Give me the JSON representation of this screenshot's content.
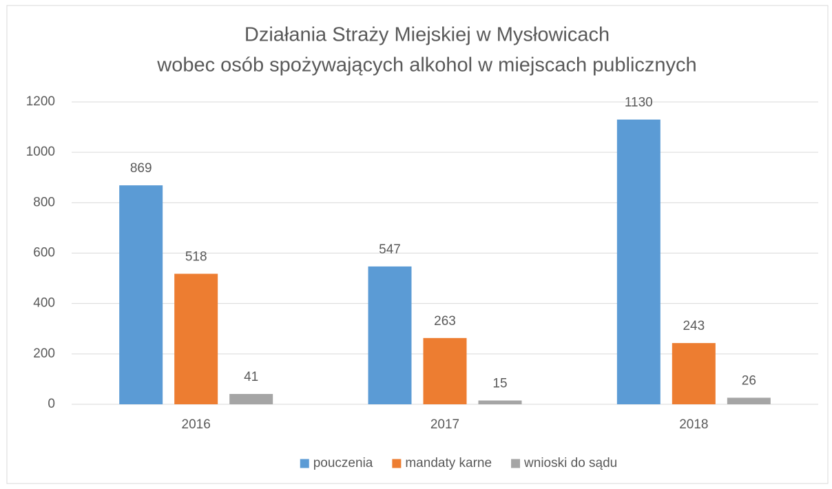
{
  "chart_data": {
    "type": "bar",
    "title": [
      "Działania Straży Miejskiej w Mysłowicach",
      "wobec osób spożywających alkohol w miejscach publicznych"
    ],
    "categories": [
      "2016",
      "2017",
      "2018"
    ],
    "series": [
      {
        "name": "pouczenia",
        "color": "#5b9bd5",
        "values": [
          869,
          547,
          1130
        ]
      },
      {
        "name": "mandaty karne",
        "color": "#ed7d31",
        "values": [
          518,
          263,
          243
        ]
      },
      {
        "name": "wnioski do sądu",
        "color": "#a5a5a5",
        "values": [
          41,
          15,
          26
        ]
      }
    ],
    "ylim": [
      0,
      1200
    ],
    "yticks": [
      0,
      200,
      400,
      600,
      800,
      1000,
      1200
    ],
    "grid": true,
    "legend": "bottom"
  }
}
